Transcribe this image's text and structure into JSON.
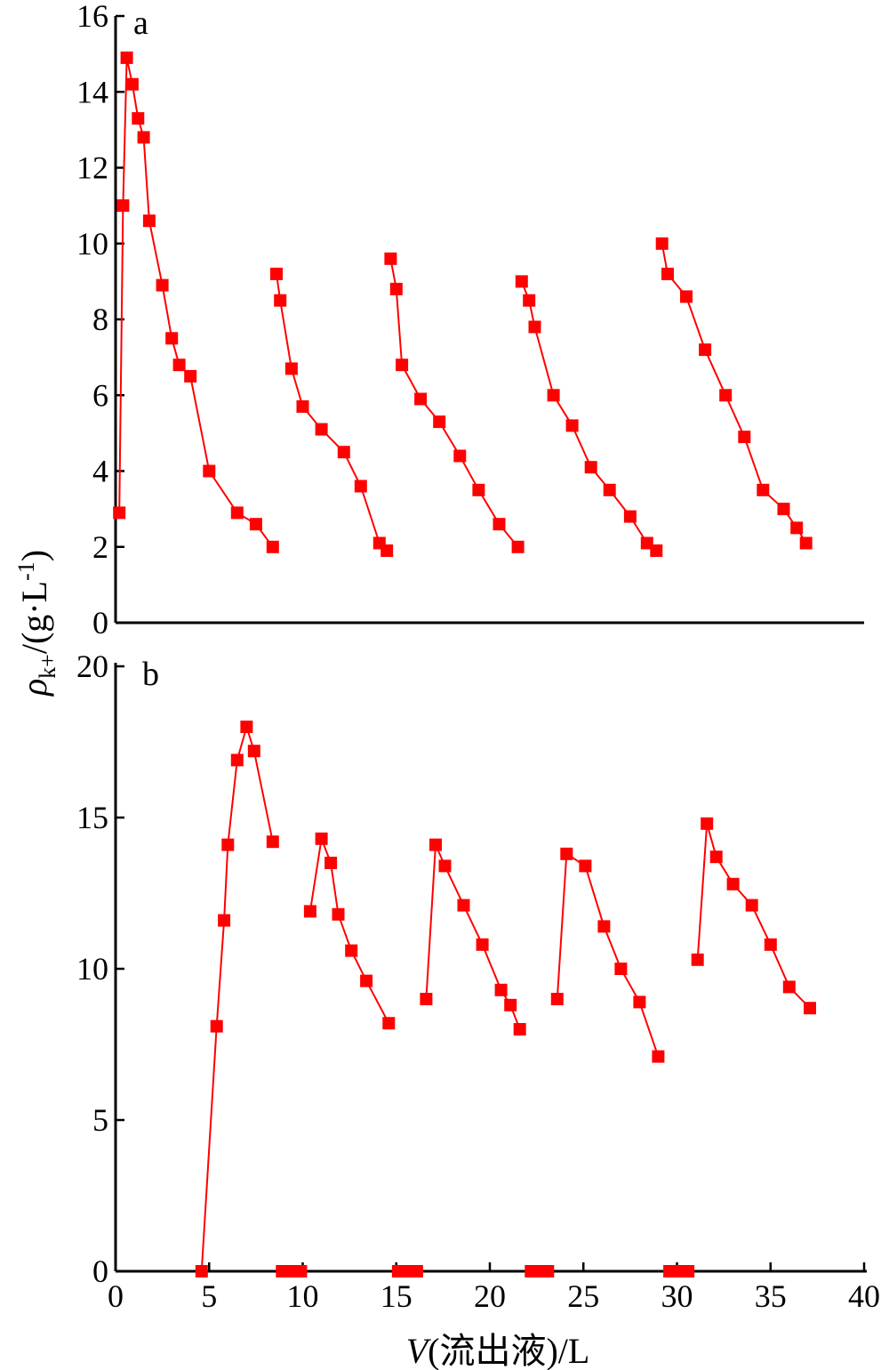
{
  "chart_data": [
    {
      "type": "line",
      "panel_label": "a",
      "series_color": "#ff0000",
      "marker": "square",
      "xlim": [
        0,
        40
      ],
      "ylim": [
        0,
        16
      ],
      "yticks": [
        "0",
        "2",
        "4",
        "6",
        "8",
        "10",
        "12",
        "14",
        "16"
      ],
      "segments": [
        {
          "x": [
            0.2,
            0.4,
            0.6,
            0.9,
            1.2,
            1.5,
            1.8,
            2.5,
            3.0,
            3.4,
            4.0,
            5.0,
            6.5,
            7.5,
            8.4
          ],
          "y": [
            2.9,
            11.0,
            14.9,
            14.2,
            13.3,
            12.8,
            10.6,
            8.9,
            7.5,
            6.8,
            6.5,
            4.0,
            2.9,
            2.6,
            2.0
          ]
        },
        {
          "x": [
            8.6,
            8.8,
            9.4,
            10.0,
            11.0,
            12.2,
            13.1,
            14.1,
            14.5
          ],
          "y": [
            9.2,
            8.5,
            6.7,
            5.7,
            5.1,
            4.5,
            3.6,
            2.1,
            1.9
          ]
        },
        {
          "x": [
            14.7,
            15.0,
            15.3,
            16.3,
            17.3,
            18.4,
            19.4,
            20.5,
            21.5
          ],
          "y": [
            9.6,
            8.8,
            6.8,
            5.9,
            5.3,
            4.4,
            3.5,
            2.6,
            2.0
          ]
        },
        {
          "x": [
            21.7,
            22.1,
            22.4,
            23.4,
            24.4,
            25.4,
            26.4,
            27.5,
            28.4,
            28.9
          ],
          "y": [
            9.0,
            8.5,
            7.8,
            6.0,
            5.2,
            4.1,
            3.5,
            2.8,
            2.1,
            1.9
          ]
        },
        {
          "x": [
            29.2,
            29.5,
            30.5,
            31.5,
            32.6,
            33.6,
            34.6,
            35.7,
            36.4,
            36.9
          ],
          "y": [
            10.0,
            9.2,
            8.6,
            7.2,
            6.0,
            4.9,
            3.5,
            3.0,
            2.5,
            2.1
          ]
        }
      ]
    },
    {
      "type": "line",
      "panel_label": "b",
      "series_color": "#ff0000",
      "marker": "square",
      "xlim": [
        0,
        40
      ],
      "ylim": [
        0,
        20
      ],
      "yticks": [
        "0",
        "5",
        "10",
        "15",
        "20"
      ],
      "xticks": [
        "0",
        "5",
        "10",
        "15",
        "20",
        "25",
        "30",
        "35",
        "40"
      ],
      "segments": [
        {
          "x": [
            4.6,
            5.4,
            5.8,
            6.0,
            6.5,
            7.0,
            7.4,
            8.4
          ],
          "y": [
            0.0,
            8.1,
            11.6,
            14.1,
            16.9,
            18.0,
            17.2,
            14.2
          ]
        },
        {
          "x": [
            8.9,
            9.1,
            9.4,
            9.6,
            9.9
          ],
          "y": [
            0.0,
            0.0,
            0.0,
            0.0,
            0.0
          ]
        },
        {
          "x": [
            10.4,
            11.0,
            11.5,
            11.9,
            12.6,
            13.4,
            14.6
          ],
          "y": [
            11.9,
            14.3,
            13.5,
            11.8,
            10.6,
            9.6,
            8.2
          ]
        },
        {
          "x": [
            15.1,
            15.3,
            15.6,
            15.8,
            16.1
          ],
          "y": [
            0.0,
            0.0,
            0.0,
            0.0,
            0.0
          ]
        },
        {
          "x": [
            16.6,
            17.1,
            17.6,
            18.6,
            19.6,
            20.6,
            21.1,
            21.6
          ],
          "y": [
            9.0,
            14.1,
            13.4,
            12.1,
            10.8,
            9.3,
            8.8,
            8.0
          ]
        },
        {
          "x": [
            22.2,
            22.4,
            22.7,
            22.9,
            23.1
          ],
          "y": [
            0.0,
            0.0,
            0.0,
            0.0,
            0.0
          ]
        },
        {
          "x": [
            23.6,
            24.1,
            25.1,
            26.1,
            27.0,
            28.0,
            29.0
          ],
          "y": [
            9.0,
            13.8,
            13.4,
            11.4,
            10.0,
            8.9,
            7.1
          ]
        },
        {
          "x": [
            29.6,
            29.8,
            30.1,
            30.3,
            30.6
          ],
          "y": [
            0.0,
            0.0,
            0.0,
            0.0,
            0.0
          ]
        },
        {
          "x": [
            31.1,
            31.6,
            32.1,
            33.0,
            34.0,
            35.0,
            36.0,
            37.1
          ],
          "y": [
            10.3,
            14.8,
            13.7,
            12.8,
            12.1,
            10.8,
            9.4,
            8.7
          ]
        }
      ]
    }
  ],
  "labels": {
    "panel_a": "a",
    "panel_b": "b",
    "x_axis_title": "V(流出液)/L",
    "y_axis_title": "ρk+/(g·L-1)"
  }
}
